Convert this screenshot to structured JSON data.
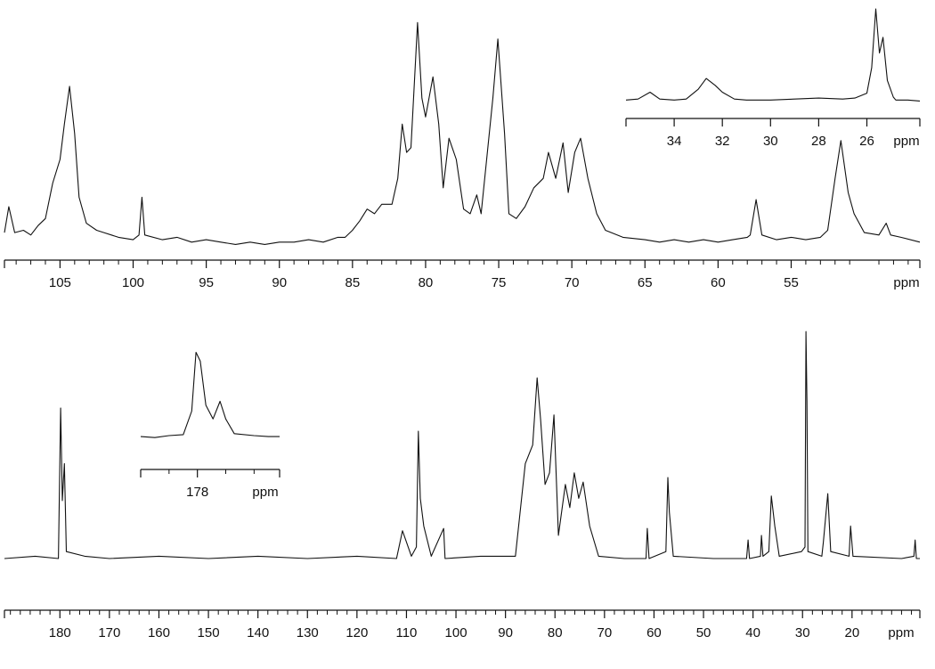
{
  "chart_data": [
    {
      "type": "line",
      "x_label": "ppm",
      "color": "#111111",
      "x": [
        108.8,
        108.5,
        108.1,
        107.5,
        107,
        106.5,
        106,
        105.5,
        105,
        104.7,
        104.35,
        104.0,
        103.7,
        103.2,
        102.5,
        102,
        101,
        100,
        99.6,
        99.4,
        99.2,
        98,
        97,
        96,
        95,
        94,
        93,
        92,
        91,
        90,
        89,
        88,
        87,
        86,
        85.5,
        85,
        84.5,
        84,
        83.5,
        83,
        82.3,
        81.9,
        81.6,
        81.3,
        81.0,
        80.55,
        80.25,
        80.0,
        79.5,
        79.1,
        78.8,
        78.4,
        77.9,
        77.4,
        76.95,
        76.5,
        76.2,
        75.4,
        75.06,
        74.6,
        74.3,
        73.8,
        73.2,
        72.6,
        71.95,
        71.6,
        71.1,
        70.6,
        70.25,
        69.8,
        69.4,
        68.9,
        68.3,
        67.7,
        66.5,
        65,
        64,
        63,
        62,
        61,
        60,
        59,
        58,
        57.8,
        57.4,
        57.0,
        56,
        55,
        54,
        53,
        52.5,
        52.0,
        51.6,
        51.1,
        50.7,
        50,
        49,
        48.5,
        48.2,
        47.5,
        46.2
      ],
      "values": [
        9,
        20,
        9,
        10,
        8,
        12,
        15,
        30,
        40,
        55,
        71,
        51,
        24,
        13,
        10,
        9,
        7,
        6,
        8,
        24,
        8,
        6,
        7,
        5,
        6,
        5,
        4,
        5,
        4,
        5,
        5,
        6,
        5,
        7,
        7,
        10,
        14,
        19,
        17,
        21,
        21,
        32,
        55,
        43,
        45,
        98,
        66,
        58,
        75,
        55,
        28,
        49,
        40,
        19,
        17,
        25,
        17,
        66,
        91,
        51,
        17,
        15,
        20,
        28,
        32,
        43,
        32,
        47,
        26,
        43,
        49,
        32,
        17,
        10,
        7,
        6,
        5,
        6,
        5,
        6,
        5,
        6,
        7,
        8,
        23,
        8,
        6,
        7,
        6,
        7,
        10,
        32,
        48,
        26,
        17,
        9,
        8,
        13,
        8,
        7,
        5
      ],
      "xlim": [
        108.8,
        46.2
      ],
      "ylim": [
        0,
        100
      ],
      "xticks": [
        105,
        100,
        95,
        90,
        85,
        80,
        75,
        70,
        65,
        60,
        55
      ],
      "minor_xticks": [
        108,
        107,
        106,
        104,
        103,
        102,
        101,
        99,
        98,
        97,
        96,
        94,
        93,
        92,
        91,
        89,
        88,
        87,
        86,
        84,
        83,
        82,
        81,
        79,
        78,
        77,
        76,
        74,
        73,
        72,
        71,
        69,
        68,
        67,
        66,
        64,
        63,
        62,
        61,
        59,
        58,
        57,
        56,
        54,
        53,
        52,
        51,
        49,
        48,
        47
      ]
    },
    {
      "type": "line",
      "x_label": "ppm",
      "color": "#111111",
      "x": [
        36,
        35.5,
        35.0,
        34.6,
        34,
        33.5,
        33.0,
        32.67,
        32.3,
        32.0,
        31.5,
        31,
        30,
        29,
        28,
        27,
        26.5,
        26.0,
        25.8,
        25.63,
        25.48,
        25.33,
        25.15,
        24.9,
        24.8,
        24.3,
        23.8
      ],
      "values": [
        7,
        8,
        15,
        8,
        7,
        8,
        18,
        29,
        22,
        15,
        8,
        7,
        7,
        8,
        9,
        8,
        9,
        14,
        40,
        100,
        55,
        71,
        27,
        10,
        7,
        7,
        6
      ],
      "xlim": [
        36,
        23.8
      ],
      "ylim": [
        0,
        100
      ],
      "xticks": [
        34,
        32,
        30,
        28,
        26
      ],
      "minor_xticks": [
        36
      ]
    },
    {
      "type": "line",
      "x_label": "ppm",
      "color": "#111111",
      "x": [
        191.2,
        185,
        180.3,
        179.85,
        179.5,
        179.1,
        178.7,
        175,
        170,
        160,
        150,
        140,
        130,
        120,
        112,
        110.8,
        109,
        108,
        107.6,
        107.2,
        106.5,
        105,
        102.5,
        102.2,
        95,
        88,
        86.0,
        84.5,
        83.6,
        82.9,
        82.0,
        81.1,
        80.2,
        79.3,
        77.9,
        77.0,
        76.1,
        75.2,
        74.3,
        73.0,
        71.2,
        66,
        61.6,
        61.35,
        61.0,
        57.6,
        57.2,
        56.9,
        56.1,
        48,
        41.3,
        41.0,
        40.7,
        38.5,
        38.3,
        38.0,
        36.8,
        36.3,
        35.6,
        34.7,
        30.2,
        29.5,
        29.3,
        29.1,
        28.9,
        26.1,
        25.8,
        24.9,
        24.3,
        20.6,
        20.3,
        19.8,
        10,
        7.5,
        7.25,
        7.0,
        6.3
      ],
      "values": [
        5,
        6,
        5,
        70,
        30,
        46,
        8,
        6,
        5,
        6,
        5,
        6,
        5,
        6,
        5,
        17,
        6,
        10,
        60,
        31,
        19,
        6,
        18,
        5,
        6,
        6,
        46,
        54,
        83,
        65,
        37,
        42,
        67,
        15,
        37,
        27,
        42,
        31,
        38,
        19,
        6,
        5,
        5,
        18,
        5,
        8,
        40,
        25,
        6,
        5,
        5,
        13,
        5,
        6,
        15,
        6,
        8,
        32,
        19,
        6,
        8,
        10,
        103,
        73,
        8,
        6,
        12,
        33,
        8,
        6,
        19,
        6,
        5,
        6,
        13,
        5,
        5
      ],
      "xlim": [
        191.2,
        6.3
      ],
      "ylim": [
        0,
        105
      ],
      "xticks": [
        180,
        170,
        160,
        150,
        140,
        130,
        120,
        110,
        100,
        90,
        80,
        70,
        60,
        50,
        40,
        30,
        20
      ],
      "minor_xticks": [
        190,
        188,
        186,
        184,
        182,
        178,
        176,
        174,
        172,
        168,
        166,
        164,
        162,
        158,
        156,
        154,
        152,
        148,
        146,
        144,
        142,
        138,
        136,
        134,
        132,
        128,
        126,
        124,
        122,
        118,
        116,
        114,
        112,
        108,
        106,
        104,
        102,
        98,
        96,
        94,
        92,
        88,
        86,
        84,
        82,
        78,
        76,
        74,
        72,
        68,
        66,
        64,
        62,
        58,
        56,
        54,
        52,
        48,
        46,
        44,
        42,
        38,
        36,
        34,
        32,
        28,
        26,
        24,
        22,
        18,
        16,
        14,
        12,
        10,
        8
      ]
    },
    {
      "type": "line",
      "x_label": "ppm",
      "color": "#111111",
      "x": [
        180,
        179.5,
        179,
        178.5,
        178.2,
        178.05,
        177.9,
        177.7,
        177.45,
        177.2,
        177.0,
        176.7,
        176,
        175.5,
        175.1
      ],
      "values": [
        9,
        8,
        10,
        11,
        35,
        95,
        86,
        41,
        27,
        45,
        27,
        12,
        10,
        9,
        9
      ],
      "xlim": [
        180,
        175.1
      ],
      "ylim": [
        0,
        100
      ],
      "xticks": [
        178
      ],
      "minor_xticks": [
        180,
        179,
        177,
        176
      ]
    }
  ]
}
